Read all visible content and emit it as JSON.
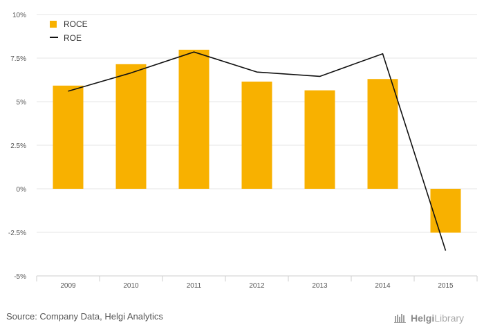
{
  "chart_data": {
    "type": "bar",
    "categories": [
      "2009",
      "2010",
      "2011",
      "2012",
      "2013",
      "2014",
      "2015"
    ],
    "series": [
      {
        "name": "ROCE",
        "kind": "bar",
        "color": "#f8b100",
        "values": [
          5.92,
          7.15,
          7.98,
          6.15,
          5.65,
          6.3,
          -2.52
        ]
      },
      {
        "name": "ROE",
        "kind": "line",
        "color": "#111111",
        "values": [
          5.6,
          6.65,
          7.85,
          6.7,
          6.45,
          7.75,
          -3.55
        ]
      }
    ],
    "y_ticks": [
      {
        "value": 10,
        "label": "10%"
      },
      {
        "value": 7.5,
        "label": "7.5%"
      },
      {
        "value": 5,
        "label": "5%"
      },
      {
        "value": 2.5,
        "label": "2.5%"
      },
      {
        "value": 0,
        "label": "0%"
      },
      {
        "value": -2.5,
        "label": "-2.5%"
      },
      {
        "value": -5,
        "label": "-5%"
      }
    ],
    "ylim": [
      -5,
      10
    ],
    "grid": true,
    "legend": "top-left",
    "title": "",
    "xlabel": "",
    "ylabel": ""
  },
  "footer": {
    "source": "Source: Company Data, Helgi Analytics",
    "brand_a": "Helgi",
    "brand_b": "Library"
  }
}
